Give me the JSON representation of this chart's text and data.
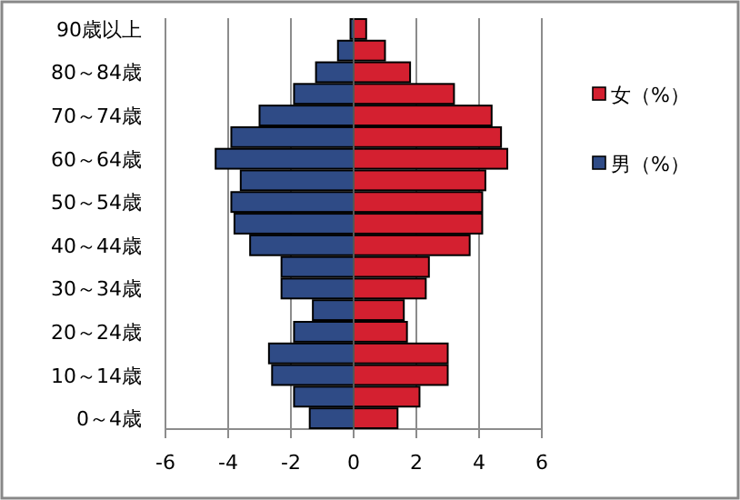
{
  "chart_data": {
    "type": "bar",
    "orientation": "horizontal",
    "stacked": true,
    "categories": [
      "90歳以上",
      null,
      "80～84歳",
      null,
      "70～74歳",
      null,
      "60～64歳",
      null,
      "50～54歳",
      null,
      "40～44歳",
      null,
      "30～34歳",
      null,
      "20～24歳",
      null,
      "10～14歳",
      null,
      "0～4歳"
    ],
    "series": [
      {
        "name": "女（%）",
        "color": "#d42030",
        "values": [
          0.4,
          1.0,
          1.8,
          3.2,
          4.4,
          4.7,
          4.9,
          4.2,
          4.1,
          4.1,
          3.7,
          2.4,
          2.3,
          1.6,
          1.7,
          3.0,
          3.0,
          2.1,
          1.4
        ]
      },
      {
        "name": "男（%）",
        "color": "#2f4b86",
        "values": [
          -0.1,
          -0.5,
          -1.2,
          -1.9,
          -3.0,
          -3.9,
          -4.4,
          -3.6,
          -3.9,
          -3.8,
          -3.3,
          -2.3,
          -2.3,
          -1.3,
          -1.9,
          -2.7,
          -2.6,
          -1.9,
          -1.4
        ]
      }
    ],
    "xlim": [
      -6,
      6
    ],
    "xticks": [
      -6,
      -4,
      -2,
      0,
      2,
      4,
      6
    ],
    "grid": "x",
    "legend": "right"
  }
}
